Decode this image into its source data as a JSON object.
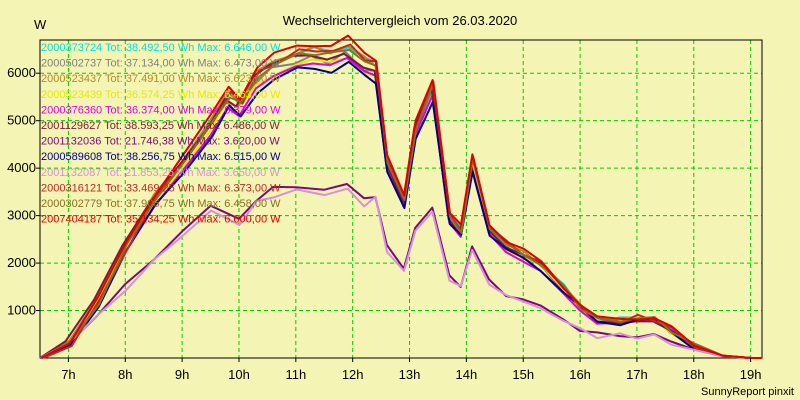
{
  "chart_data": {
    "type": "line",
    "title": "Wechselrichtervergleich vom 26.03.2020",
    "ylabel": "W",
    "credit": "SunnyReport pinxit",
    "xlim": [
      6.5,
      19.2
    ],
    "ylim": [
      0,
      6700
    ],
    "x_ticks": [
      {
        "value": 7,
        "label": "7h"
      },
      {
        "value": 8,
        "label": "8h"
      },
      {
        "value": 9,
        "label": "9h"
      },
      {
        "value": 10,
        "label": "10h"
      },
      {
        "value": 11,
        "label": "11h"
      },
      {
        "value": 12,
        "label": "12h"
      },
      {
        "value": 13,
        "label": "13h"
      },
      {
        "value": 14,
        "label": "14h"
      },
      {
        "value": 15,
        "label": "15h"
      },
      {
        "value": 16,
        "label": "16h"
      },
      {
        "value": 17,
        "label": "17h"
      },
      {
        "value": 18,
        "label": "18h"
      },
      {
        "value": 19,
        "label": "19h"
      }
    ],
    "y_ticks": [
      {
        "value": 1000,
        "label": "1000"
      },
      {
        "value": 2000,
        "label": "2000"
      },
      {
        "value": 3000,
        "label": "3000"
      },
      {
        "value": 4000,
        "label": "4000"
      },
      {
        "value": 5000,
        "label": "5000"
      },
      {
        "value": 6000,
        "label": "6000"
      }
    ],
    "grid": true,
    "legend_position": "top-left",
    "series": [
      {
        "name": "2000373724",
        "label": "2000373724 Tot: 38.492,50 Wh Max: 6.646,00 W",
        "color": "#00e0e0",
        "group": "A",
        "var": 0,
        "dx": 0.02
      },
      {
        "name": "2000502737",
        "label": "2000502737 Tot: 37.134,00 Wh Max: 6.473,00 W",
        "color": "#808080",
        "group": "A",
        "var": 1,
        "dx": -0.03
      },
      {
        "name": "2000523437",
        "label": "2000523437 Tot: 37.491,00 Wh Max: 6.623,00 W",
        "color": "#b48a28",
        "group": "A",
        "var": 2,
        "dx": 0.01
      },
      {
        "name": "2000523439",
        "label": "2000523439 Tot: 36.574,25 Wh Max: 6.463,00 W",
        "color": "#e8e800",
        "group": "A",
        "var": 3,
        "dx": -0.01
      },
      {
        "name": "2000376360",
        "label": "2000376360 Tot: 36.374,00 Wh Max: 6.379,00 W",
        "color": "#e000e0",
        "group": "A",
        "var": 4,
        "dx": 0.0
      },
      {
        "name": "2001129627",
        "label": "2001129627 Tot: 38.593,25 Wh Max: 6.486,00 W",
        "color": "#7a1a3a",
        "group": "A",
        "var": 5,
        "dx": -0.05
      },
      {
        "name": "2001132036",
        "label": "2001132036 Tot: 21.746,38 Wh Max: 3.620,00 W",
        "color": "#7a0a7a",
        "group": "B",
        "var": 0,
        "dx": 0.0
      },
      {
        "name": "2000589608",
        "label": "2000589608 Tot: 38.256,75 Wh Max: 6.515,00 W",
        "color": "#000088",
        "group": "A",
        "var": 6,
        "dx": 0.03
      },
      {
        "name": "2001132087",
        "label": "2001132087 Tot: 21.853,25 Wh Max: 3.650,00 W",
        "color": "#d890d8",
        "group": "B",
        "var": 1,
        "dx": 0.01
      },
      {
        "name": "2000316121",
        "label": "2000316121 Tot: 33.469,25 Wh Max: 6.373,00 W",
        "color": "#c02828",
        "group": "A",
        "var": 7,
        "dx": 0.06
      },
      {
        "name": "2000302779",
        "label": "2000302779 Tot: 37.906,75 Wh Max: 6.458,00 W",
        "color": "#8a7020",
        "group": "A",
        "var": 8,
        "dx": 0.04
      },
      {
        "name": "2007404187",
        "label": "2007404187 Tot: 35.134,25 Wh Max: 6.600,00 W",
        "color": "#e00000",
        "group": "A",
        "var": 9,
        "dx": 0.02
      }
    ],
    "base_profiles": {
      "A": {
        "x": [
          6.5,
          7.0,
          7.5,
          8.0,
          8.5,
          9.0,
          9.5,
          9.8,
          10.0,
          10.3,
          10.6,
          11.0,
          11.3,
          11.6,
          11.9,
          12.2,
          12.4,
          12.6,
          12.9,
          13.1,
          13.4,
          13.7,
          13.9,
          14.1,
          14.4,
          14.7,
          15.0,
          15.3,
          15.7,
          16.0,
          16.3,
          16.7,
          17.0,
          17.3,
          17.6,
          18.0,
          18.5,
          19.0,
          19.2
        ],
        "y": [
          0,
          300,
          1200,
          2400,
          3400,
          4200,
          5000,
          5600,
          5400,
          6000,
          6250,
          6450,
          6500,
          6450,
          6600,
          6300,
          6200,
          4200,
          3300,
          4900,
          5800,
          3000,
          2700,
          4200,
          2800,
          2400,
          2200,
          2000,
          1500,
          1100,
          800,
          800,
          850,
          830,
          600,
          250,
          50,
          0,
          0
        ]
      },
      "B": {
        "x": [
          6.5,
          7.0,
          7.5,
          8.0,
          8.5,
          9.0,
          9.5,
          10.0,
          10.3,
          10.6,
          11.0,
          11.5,
          11.9,
          12.2,
          12.4,
          12.6,
          12.9,
          13.1,
          13.4,
          13.7,
          13.9,
          14.1,
          14.4,
          14.7,
          15.0,
          15.3,
          15.7,
          16.0,
          16.3,
          16.7,
          17.0,
          17.3,
          17.6,
          18.0,
          18.5,
          19.0,
          19.2
        ],
        "y": [
          0,
          350,
          900,
          1500,
          2100,
          2700,
          3150,
          2950,
          3350,
          3550,
          3600,
          3600,
          3620,
          3350,
          3450,
          2350,
          1850,
          2800,
          3150,
          1700,
          1550,
          2350,
          1600,
          1350,
          1250,
          1050,
          850,
          600,
          480,
          480,
          480,
          450,
          350,
          180,
          40,
          0,
          0
        ]
      }
    }
  }
}
